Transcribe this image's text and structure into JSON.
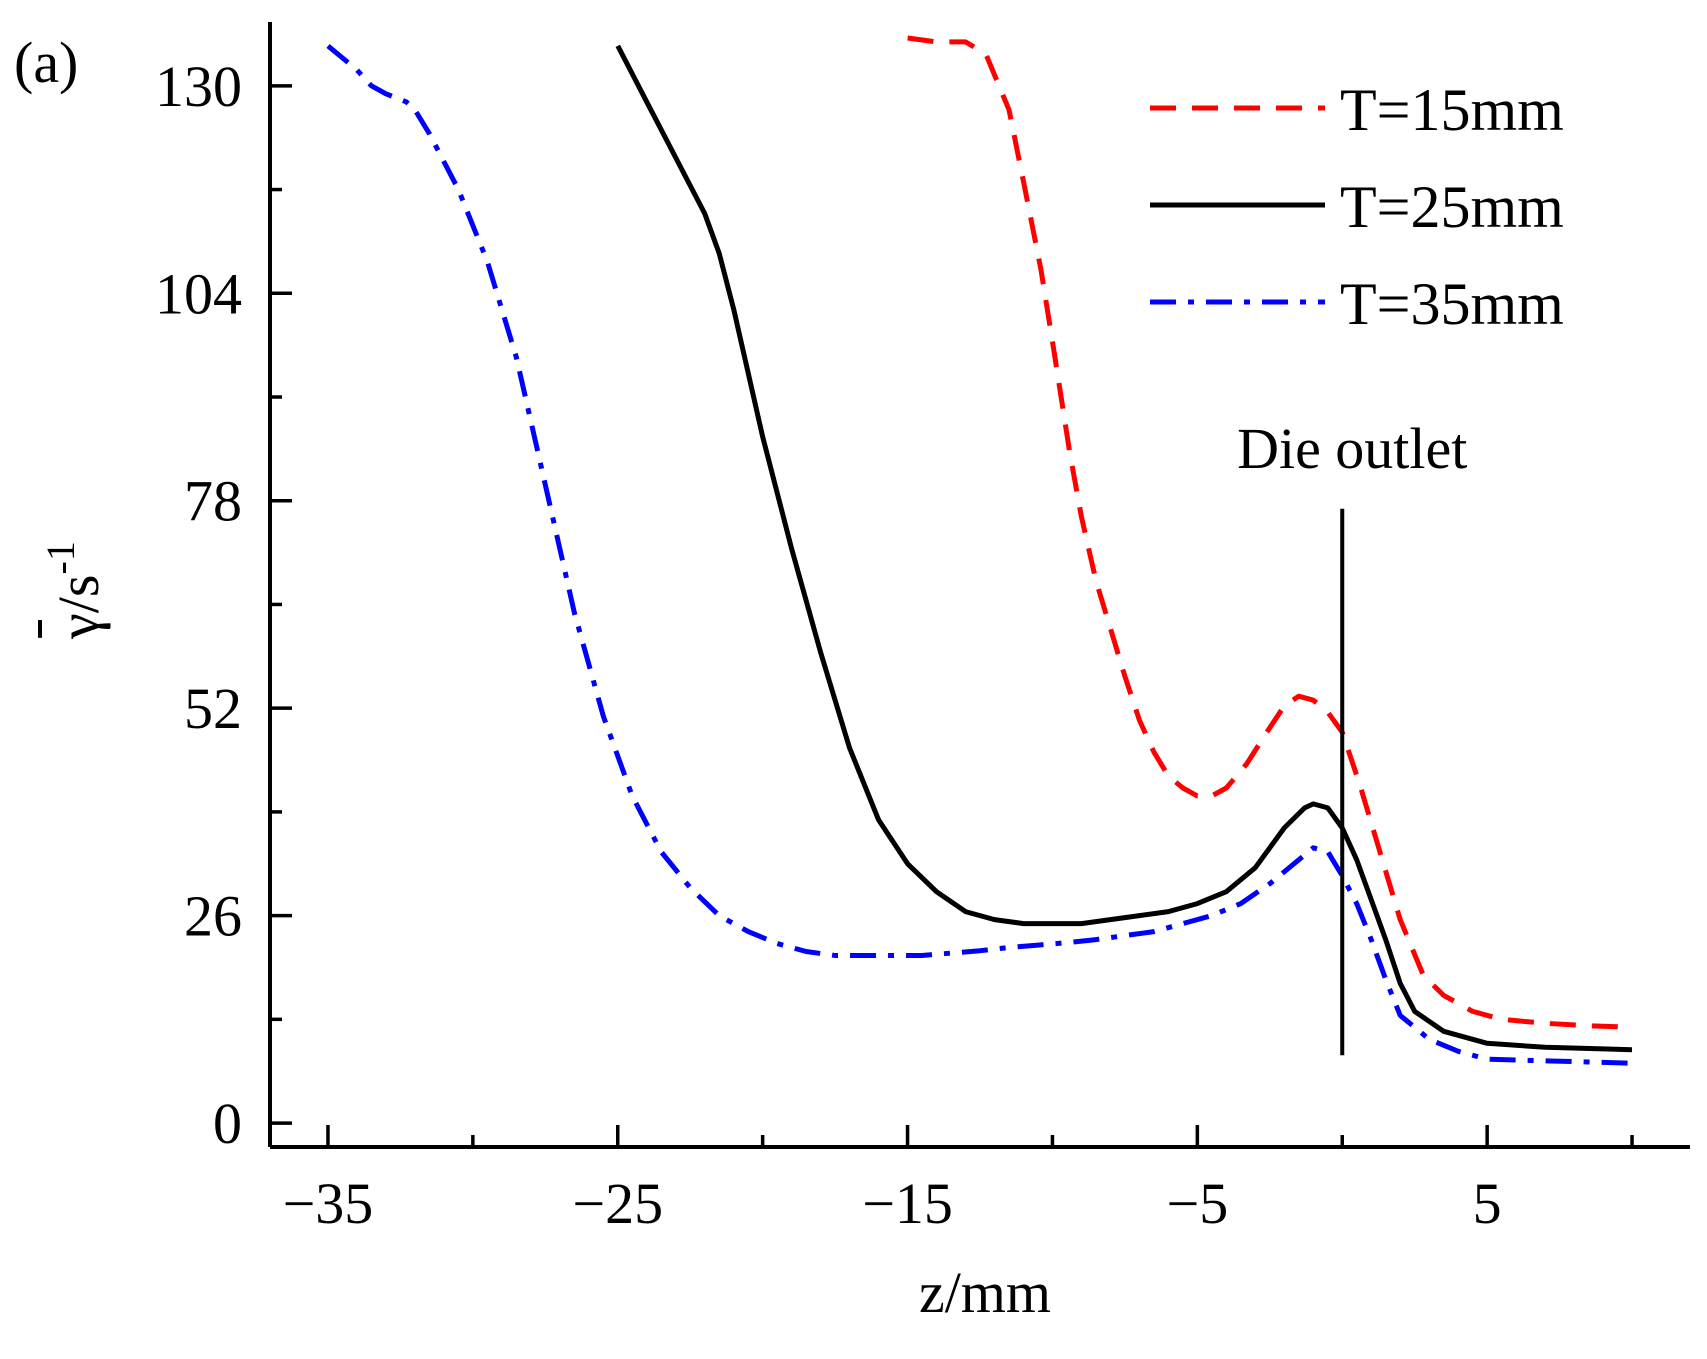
{
  "panel_label": "(a)",
  "chart_data": {
    "type": "line",
    "title": "",
    "xlabel": "z/mm",
    "ylabel_main": "γ/s",
    "ylabel_sup": "-1",
    "xlim": [
      -37,
      12
    ],
    "ylim": [
      -3,
      138
    ],
    "xticks_major": [
      -35,
      -25,
      -15,
      -5,
      5
    ],
    "xticks_minor": [
      -30,
      -20,
      -10,
      0,
      10
    ],
    "xtick_labels": [
      "−35",
      "−25",
      "−15",
      "−5",
      "5"
    ],
    "yticks_major": [
      0,
      26,
      52,
      78,
      104,
      130
    ],
    "yticks_minor": [
      13,
      39,
      65,
      91,
      117
    ],
    "ytick_labels": [
      "0",
      "26",
      "52",
      "78",
      "104",
      "130"
    ],
    "legend_position": "top-right",
    "series": [
      {
        "name": "T=15mm",
        "color": "#ff0000",
        "style": "dashed",
        "points": [
          [
            -15,
            136
          ],
          [
            -14,
            135.5
          ],
          [
            -13,
            135.5
          ],
          [
            -12.3,
            134
          ],
          [
            -11.5,
            127
          ],
          [
            -11,
            118
          ],
          [
            -10.4,
            107
          ],
          [
            -10,
            98
          ],
          [
            -9.4,
            84
          ],
          [
            -9,
            76
          ],
          [
            -8.5,
            68
          ],
          [
            -8,
            62
          ],
          [
            -7.5,
            56
          ],
          [
            -7,
            50.5
          ],
          [
            -6.5,
            46.5
          ],
          [
            -6,
            43.5
          ],
          [
            -5.5,
            42
          ],
          [
            -5,
            41
          ],
          [
            -4.5,
            41
          ],
          [
            -4,
            42
          ],
          [
            -3.3,
            45
          ],
          [
            -2.6,
            49
          ],
          [
            -2,
            52.3
          ],
          [
            -1.5,
            53.5
          ],
          [
            -1,
            53
          ],
          [
            -0.5,
            51.5
          ],
          [
            0,
            49
          ],
          [
            0.6,
            42.5
          ],
          [
            1.3,
            34
          ],
          [
            2,
            25.5
          ],
          [
            2.8,
            18.5
          ],
          [
            3.5,
            16
          ],
          [
            4.5,
            14
          ],
          [
            5.5,
            13
          ],
          [
            7,
            12.5
          ],
          [
            8.5,
            12.2
          ],
          [
            10,
            12
          ]
        ]
      },
      {
        "name": "T=25mm",
        "color": "#000000",
        "style": "solid",
        "points": [
          [
            -25,
            135
          ],
          [
            -24,
            128
          ],
          [
            -23,
            121
          ],
          [
            -22,
            114
          ],
          [
            -21.5,
            109
          ],
          [
            -21,
            102
          ],
          [
            -20.5,
            94
          ],
          [
            -20,
            86
          ],
          [
            -19,
            72
          ],
          [
            -18,
            59
          ],
          [
            -17,
            47
          ],
          [
            -16,
            38
          ],
          [
            -15,
            32.5
          ],
          [
            -14,
            29
          ],
          [
            -13,
            26.5
          ],
          [
            -12,
            25.5
          ],
          [
            -11,
            25
          ],
          [
            -10,
            25
          ],
          [
            -9,
            25
          ],
          [
            -8,
            25.5
          ],
          [
            -7,
            26
          ],
          [
            -6,
            26.5
          ],
          [
            -5,
            27.5
          ],
          [
            -4,
            29
          ],
          [
            -3,
            32
          ],
          [
            -2,
            37
          ],
          [
            -1.3,
            39.5
          ],
          [
            -1,
            40
          ],
          [
            -0.5,
            39.5
          ],
          [
            0,
            37
          ],
          [
            0.5,
            33
          ],
          [
            1,
            28
          ],
          [
            1.5,
            23
          ],
          [
            2,
            17.5
          ],
          [
            2.5,
            14
          ],
          [
            3.5,
            11.5
          ],
          [
            5,
            10
          ],
          [
            7,
            9.5
          ],
          [
            9,
            9.3
          ],
          [
            10,
            9.2
          ]
        ]
      },
      {
        "name": "T=35mm",
        "color": "#0000ff",
        "style": "dashdot",
        "points": [
          [
            -35,
            135
          ],
          [
            -34,
            132
          ],
          [
            -33.5,
            130
          ],
          [
            -33,
            129
          ],
          [
            -32.3,
            128
          ],
          [
            -32,
            127
          ],
          [
            -31.5,
            124
          ],
          [
            -30.5,
            117
          ],
          [
            -29.5,
            108
          ],
          [
            -28.5,
            96
          ],
          [
            -27.5,
            80
          ],
          [
            -26.5,
            64
          ],
          [
            -25.5,
            51
          ],
          [
            -24.5,
            41
          ],
          [
            -23.5,
            34
          ],
          [
            -22.5,
            29.5
          ],
          [
            -21.5,
            26
          ],
          [
            -20.5,
            24
          ],
          [
            -19.5,
            22.5
          ],
          [
            -18.5,
            21.5
          ],
          [
            -17.5,
            21
          ],
          [
            -16.5,
            21
          ],
          [
            -15.5,
            21
          ],
          [
            -14.5,
            21
          ],
          [
            -13.5,
            21.3
          ],
          [
            -12.5,
            21.6
          ],
          [
            -11.5,
            22
          ],
          [
            -10.5,
            22.3
          ],
          [
            -9.5,
            22.6
          ],
          [
            -8.5,
            23
          ],
          [
            -7.5,
            23.5
          ],
          [
            -6.5,
            24
          ],
          [
            -5.5,
            25
          ],
          [
            -4.5,
            26
          ],
          [
            -3.5,
            27.5
          ],
          [
            -2.5,
            30
          ],
          [
            -1.5,
            33
          ],
          [
            -1,
            34.5
          ],
          [
            -0.5,
            34
          ],
          [
            0,
            31
          ],
          [
            0.5,
            27.5
          ],
          [
            1,
            23
          ],
          [
            1.5,
            18
          ],
          [
            2,
            13.5
          ],
          [
            3,
            10.5
          ],
          [
            4,
            9
          ],
          [
            5,
            8
          ],
          [
            7,
            7.8
          ],
          [
            9,
            7.6
          ],
          [
            10,
            7.5
          ]
        ]
      }
    ],
    "annotation": {
      "text": "Die outlet",
      "line_x": 0,
      "line_y_range": [
        8.5,
        77
      ]
    }
  }
}
